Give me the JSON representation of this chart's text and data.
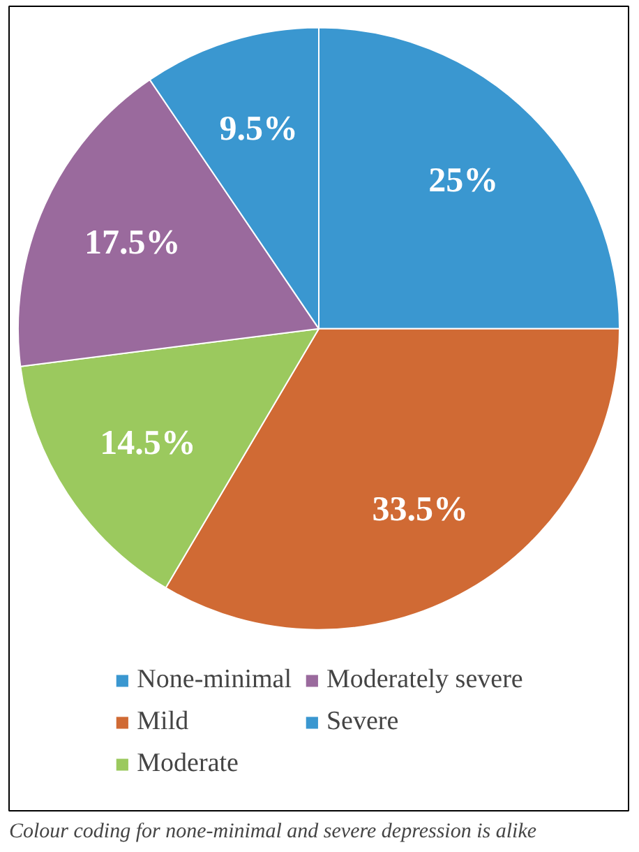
{
  "chart_data": {
    "type": "pie",
    "categories": [
      "None-minimal",
      "Mild",
      "Moderate",
      "Moderately severe",
      "Severe"
    ],
    "values": [
      25,
      33.5,
      14.5,
      17.5,
      9.5
    ],
    "value_labels": [
      "25%",
      "33.5%",
      "14.5%",
      "17.5%",
      "9.5%"
    ],
    "colors": [
      "#3a97d0",
      "#d06a34",
      "#9bc95e",
      "#9a6a9d",
      "#3a97d0"
    ],
    "legend": "bottom",
    "annotations": [
      "Colour coding for none-minimal and severe depression is alike"
    ]
  }
}
